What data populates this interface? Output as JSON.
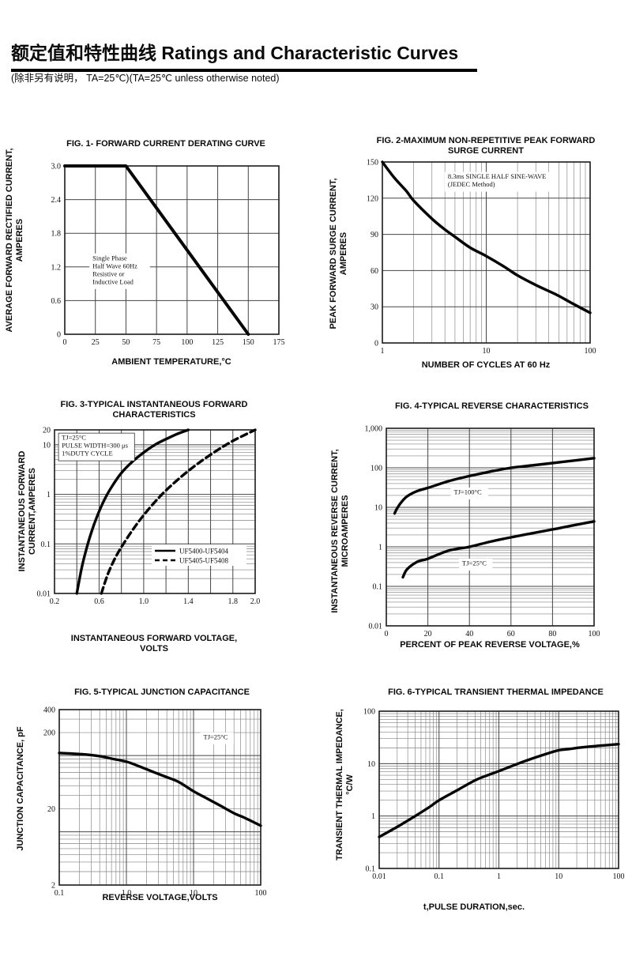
{
  "header": {
    "title_zh": "额定值和特性曲线",
    "title_en": "Ratings and Characteristic Curves",
    "subtitle": "(除非另有说明， TA=25℃)(TA=25℃  unless otherwise noted)"
  },
  "chart_data": [
    {
      "type": "line",
      "title": "FIG. 1- FORWARD CURRENT DERATING CURVE",
      "xlabel": "AMBIENT TEMPERATURE,°C",
      "ylabel": [
        "AVERAGE FORWARD RECTIFIED CURRENT,",
        "AMPERES"
      ],
      "x_axis": {
        "type": "linear",
        "min": 0,
        "max": 175,
        "grid": 25
      },
      "y_axis": {
        "type": "linear",
        "min": 0,
        "max": 3,
        "grid": 0.6
      },
      "x_ticks": [
        [
          0,
          "0"
        ],
        [
          25,
          "25"
        ],
        [
          50,
          "50"
        ],
        [
          75,
          "75"
        ],
        [
          100,
          "100"
        ],
        [
          125,
          "125"
        ],
        [
          150,
          "150"
        ],
        [
          175,
          "175"
        ]
      ],
      "y_ticks": [
        [
          0,
          "0"
        ],
        [
          0.6,
          "0.6"
        ],
        [
          1.2,
          "1.2"
        ],
        [
          1.8,
          "1.8"
        ],
        [
          2.4,
          "2.4"
        ],
        [
          3,
          "3.0"
        ]
      ],
      "series": [
        {
          "name": "derating",
          "dash": false,
          "smooth": false,
          "points": [
            [
              0,
              3
            ],
            [
              50,
              3
            ],
            [
              150,
              0
            ]
          ]
        }
      ],
      "annotations": [
        {
          "fx": 0.115,
          "fy": 0.52,
          "boxed": false,
          "lines": [
            "Single Phase",
            "Half Wave 60Hz",
            "Resistive or",
            "Inductive Load"
          ]
        }
      ]
    },
    {
      "type": "line",
      "title": "FIG. 2-MAXIMUM NON-REPETITIVE PEAK FORWARD SURGE CURRENT",
      "xlabel": "NUMBER OF CYCLES AT 60 Hz",
      "ylabel": [
        "PEAK  FORWARD SURGE CURRENT,",
        "AMPERES"
      ],
      "x_axis": {
        "type": "log",
        "min": 1,
        "max": 100
      },
      "y_axis": {
        "type": "linear",
        "min": 0,
        "max": 150,
        "grid": 30
      },
      "x_ticks": [
        [
          1,
          "1"
        ],
        [
          10,
          "10"
        ],
        [
          100,
          "100"
        ]
      ],
      "y_ticks": [
        [
          0,
          "0"
        ],
        [
          30,
          "30"
        ],
        [
          60,
          "60"
        ],
        [
          90,
          "90"
        ],
        [
          120,
          "120"
        ],
        [
          150,
          "150"
        ]
      ],
      "series": [
        {
          "name": "surge",
          "dash": false,
          "smooth": true,
          "points": [
            [
              1,
              150
            ],
            [
              1.3,
              137
            ],
            [
              1.7,
              126
            ],
            [
              2,
              118
            ],
            [
              3,
              103
            ],
            [
              4,
              94
            ],
            [
              5,
              88
            ],
            [
              7,
              79
            ],
            [
              10,
              72
            ],
            [
              15,
              63
            ],
            [
              20,
              56
            ],
            [
              30,
              48
            ],
            [
              40,
              43
            ],
            [
              50,
              39
            ],
            [
              70,
              32
            ],
            [
              100,
              25
            ]
          ]
        }
      ],
      "annotations": [
        {
          "fx": 0.3,
          "fy": 0.055,
          "boxed": false,
          "lines": [
            "8.3ms SINGLE HALF SINE-WAVE",
            "(JEDEC Method)"
          ]
        }
      ]
    },
    {
      "type": "line",
      "title": "FIG. 3-TYPICAL INSTANTANEOUS FORWARD CHARACTERISTICS",
      "xlabel": "INSTANTANEOUS FORWARD VOLTAGE, VOLTS",
      "ylabel": [
        "INSTANTANEOUS FORWARD",
        "CURRENT,AMPERES"
      ],
      "x_axis": {
        "type": "linear",
        "min": 0.2,
        "max": 2.0,
        "grid": 0.2
      },
      "y_axis": {
        "type": "log",
        "min": 0.01,
        "max": 20
      },
      "x_ticks": [
        [
          0.2,
          "0.2"
        ],
        [
          0.6,
          "0.6"
        ],
        [
          1.0,
          "1.0"
        ],
        [
          1.4,
          "1.4"
        ],
        [
          1.8,
          "1.8"
        ],
        [
          2.0,
          "2.0"
        ]
      ],
      "y_ticks": [
        [
          0.01,
          "0.01"
        ],
        [
          0.1,
          "0.1"
        ],
        [
          1,
          "1"
        ],
        [
          10,
          "10"
        ],
        [
          20,
          "20"
        ]
      ],
      "series": [
        {
          "name": "UF5400-UF5404",
          "dash": false,
          "smooth": true,
          "points": [
            [
              0.4,
              0.01
            ],
            [
              0.44,
              0.03
            ],
            [
              0.48,
              0.07
            ],
            [
              0.53,
              0.17
            ],
            [
              0.58,
              0.35
            ],
            [
              0.65,
              0.8
            ],
            [
              0.72,
              1.5
            ],
            [
              0.8,
              2.7
            ],
            [
              0.9,
              4.6
            ],
            [
              1.0,
              7
            ],
            [
              1.1,
              10
            ],
            [
              1.2,
              13
            ],
            [
              1.3,
              16.5
            ],
            [
              1.4,
              20
            ]
          ]
        },
        {
          "name": "UF5405-UF5408",
          "dash": true,
          "smooth": true,
          "points": [
            [
              0.62,
              0.01
            ],
            [
              0.68,
              0.025
            ],
            [
              0.75,
              0.055
            ],
            [
              0.83,
              0.11
            ],
            [
              0.92,
              0.22
            ],
            [
              1.0,
              0.38
            ],
            [
              1.1,
              0.7
            ],
            [
              1.2,
              1.2
            ],
            [
              1.35,
              2.4
            ],
            [
              1.5,
              4.4
            ],
            [
              1.65,
              7.5
            ],
            [
              1.8,
              12
            ],
            [
              2.0,
              20
            ]
          ]
        }
      ],
      "annotations": [
        {
          "fx": 0.02,
          "fy": 0.02,
          "boxed": true,
          "lines": [
            "TJ=25°C",
            "PULSE WIDTH=300 μs",
            "1%DUTY CYCLE"
          ]
        }
      ],
      "legend": {
        "fx": 0.5,
        "fy": 0.715,
        "entries": [
          {
            "label": "UF5400-UF5404",
            "dash": false
          },
          {
            "label": "UF5405-UF5408",
            "dash": true
          }
        ]
      }
    },
    {
      "type": "line",
      "title": "FIG. 4-TYPICAL REVERSE CHARACTERISTICS",
      "xlabel": "PERCENT OF PEAK REVERSE VOLTAGE,%",
      "ylabel": [
        "INSTANTANEOUS REVERSE CURRENT,",
        "MICROAMPERES"
      ],
      "x_axis": {
        "type": "linear",
        "min": 0,
        "max": 100,
        "grid": 20
      },
      "y_axis": {
        "type": "log",
        "min": 0.01,
        "max": 1000
      },
      "x_ticks": [
        [
          0,
          "0"
        ],
        [
          20,
          "20"
        ],
        [
          40,
          "40"
        ],
        [
          60,
          "60"
        ],
        [
          80,
          "80"
        ],
        [
          100,
          "100"
        ]
      ],
      "y_ticks": [
        [
          0.01,
          "0.01"
        ],
        [
          0.1,
          "0.1"
        ],
        [
          1,
          "1"
        ],
        [
          10,
          "10"
        ],
        [
          100,
          "100"
        ],
        [
          1000,
          "1,000"
        ]
      ],
      "series": [
        {
          "name": "TJ=100C",
          "dash": false,
          "smooth": true,
          "points": [
            [
              4,
              7
            ],
            [
              5,
              9
            ],
            [
              7,
              13
            ],
            [
              10,
              19
            ],
            [
              15,
              26
            ],
            [
              20,
              31
            ],
            [
              30,
              46
            ],
            [
              40,
              62
            ],
            [
              50,
              80
            ],
            [
              60,
              100
            ],
            [
              70,
              115
            ],
            [
              80,
              132
            ],
            [
              90,
              152
            ],
            [
              100,
              175
            ]
          ]
        },
        {
          "name": "TJ=25C",
          "dash": false,
          "smooth": true,
          "points": [
            [
              8,
              0.17
            ],
            [
              10,
              0.27
            ],
            [
              15,
              0.42
            ],
            [
              20,
              0.5
            ],
            [
              30,
              0.8
            ],
            [
              40,
              1.0
            ],
            [
              50,
              1.35
            ],
            [
              60,
              1.74
            ],
            [
              70,
              2.2
            ],
            [
              80,
              2.75
            ],
            [
              90,
              3.5
            ],
            [
              100,
              4.4
            ]
          ]
        }
      ],
      "annotations": [
        {
          "fx": 0.31,
          "fy": 0.3,
          "boxed": false,
          "lines": [
            "TJ=100°C"
          ]
        },
        {
          "fx": 0.35,
          "fy": 0.66,
          "boxed": false,
          "lines": [
            "TJ=25°C"
          ]
        }
      ]
    },
    {
      "type": "line",
      "title": "FIG. 5-TYPICAL JUNCTION CAPACITANCE",
      "xlabel": "REVERSE VOLTAGE,VOLTS",
      "ylabel": [
        "JUNCTION CAPACITANCE, pF"
      ],
      "x_axis": {
        "type": "log",
        "min": 0.1,
        "max": 100
      },
      "y_axis": {
        "type": "log",
        "min": 2,
        "max": 400
      },
      "x_ticks": [
        [
          0.1,
          "0.1"
        ],
        [
          1,
          "1.0"
        ],
        [
          10,
          "10"
        ],
        [
          100,
          "100"
        ]
      ],
      "y_ticks": [
        [
          2,
          "2"
        ],
        [
          20,
          "20"
        ],
        [
          200,
          "200"
        ],
        [
          400,
          "400"
        ]
      ],
      "series": [
        {
          "name": "capacitance",
          "dash": false,
          "smooth": true,
          "points": [
            [
              0.1,
              108
            ],
            [
              0.15,
              106
            ],
            [
              0.25,
              103
            ],
            [
              0.4,
              98
            ],
            [
              0.6,
              91
            ],
            [
              1,
              83
            ],
            [
              1.5,
              73
            ],
            [
              2.5,
              61
            ],
            [
              4,
              52
            ],
            [
              6,
              45
            ],
            [
              10,
              34
            ],
            [
              15,
              28
            ],
            [
              25,
              22
            ],
            [
              40,
              17.5
            ],
            [
              60,
              15
            ],
            [
              100,
              12
            ]
          ]
        }
      ],
      "annotations": [
        {
          "fx": 0.7,
          "fy": 0.13,
          "boxed": false,
          "lines": [
            "TJ=25°C"
          ]
        }
      ]
    },
    {
      "type": "line",
      "title": "FIG. 6-TYPICAL TRANSIENT THERMAL IMPEDANCE",
      "xlabel": "t,PULSE DURATION,sec.",
      "ylabel": [
        "TRANSIENT THERMAL IMPEDANCE,",
        "°C/W"
      ],
      "x_axis": {
        "type": "log",
        "min": 0.01,
        "max": 100
      },
      "y_axis": {
        "type": "log",
        "min": 0.1,
        "max": 100
      },
      "x_ticks": [
        [
          0.01,
          "0.01"
        ],
        [
          0.1,
          "0.1"
        ],
        [
          1,
          "1"
        ],
        [
          10,
          "10"
        ],
        [
          100,
          "100"
        ]
      ],
      "y_ticks": [
        [
          0.1,
          "0.1"
        ],
        [
          1,
          "1"
        ],
        [
          10,
          "10"
        ],
        [
          100,
          "100"
        ]
      ],
      "series": [
        {
          "name": "thermal impedance",
          "dash": false,
          "smooth": true,
          "points": [
            [
              0.01,
              0.4
            ],
            [
              0.02,
              0.62
            ],
            [
              0.04,
              1.0
            ],
            [
              0.07,
              1.5
            ],
            [
              0.1,
              2.0
            ],
            [
              0.2,
              3.1
            ],
            [
              0.4,
              4.8
            ],
            [
              0.7,
              6.2
            ],
            [
              1,
              7.2
            ],
            [
              2,
              9.8
            ],
            [
              4,
              13
            ],
            [
              7,
              16
            ],
            [
              10,
              18
            ],
            [
              15,
              19
            ],
            [
              25,
              20.5
            ],
            [
              50,
              22
            ],
            [
              100,
              23.5
            ]
          ]
        }
      ],
      "annotations": []
    }
  ]
}
